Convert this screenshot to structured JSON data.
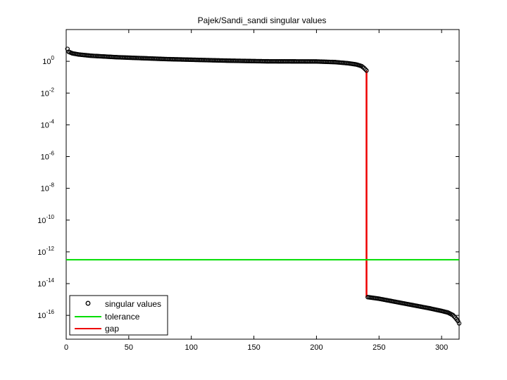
{
  "chart_data": {
    "type": "scatter",
    "title": "Pajek/Sandi_sandi singular values",
    "xlabel": "",
    "ylabel": "",
    "xlim": [
      0,
      314
    ],
    "ylim_log10": [
      -17.5,
      2
    ],
    "yscale": "log",
    "grid": false,
    "x_ticks": [
      0,
      50,
      100,
      150,
      200,
      250,
      300
    ],
    "y_ticks": [
      {
        "base": "10",
        "exp": "0",
        "log": 0
      },
      {
        "base": "10",
        "exp": "-2",
        "log": -2
      },
      {
        "base": "10",
        "exp": "-4",
        "log": -4
      },
      {
        "base": "10",
        "exp": "-6",
        "log": -6
      },
      {
        "base": "10",
        "exp": "-8",
        "log": -8
      },
      {
        "base": "10",
        "exp": "-10",
        "log": -10
      },
      {
        "base": "10",
        "exp": "-12",
        "log": -12
      },
      {
        "base": "10",
        "exp": "-14",
        "log": -14
      },
      {
        "base": "10",
        "exp": "-16",
        "log": -16
      }
    ],
    "series": [
      {
        "name": "singular values",
        "style": "markers",
        "color": "#000000",
        "segments": [
          {
            "x_start": 1,
            "x_end": 240,
            "log10_profile": [
              [
                1,
                0.78
              ],
              [
                2,
                0.6
              ],
              [
                5,
                0.5
              ],
              [
                10,
                0.43
              ],
              [
                20,
                0.35
              ],
              [
                40,
                0.26
              ],
              [
                60,
                0.2
              ],
              [
                80,
                0.14
              ],
              [
                100,
                0.1
              ],
              [
                130,
                0.04
              ],
              [
                160,
                0.0
              ],
              [
                200,
                -0.01
              ],
              [
                215,
                -0.05
              ],
              [
                225,
                -0.12
              ],
              [
                232,
                -0.2
              ],
              [
                236,
                -0.3
              ],
              [
                238,
                -0.42
              ],
              [
                240,
                -0.58
              ]
            ]
          },
          {
            "x_start": 241,
            "x_end": 314,
            "log10_profile": [
              [
                241,
                -14.85
              ],
              [
                250,
                -14.95
              ],
              [
                260,
                -15.1
              ],
              [
                270,
                -15.25
              ],
              [
                280,
                -15.4
              ],
              [
                290,
                -15.55
              ],
              [
                300,
                -15.72
              ],
              [
                305,
                -15.82
              ],
              [
                309,
                -15.98
              ],
              [
                311,
                -16.15
              ],
              [
                313,
                -16.35
              ],
              [
                314,
                -16.5
              ]
            ]
          }
        ]
      },
      {
        "name": "tolerance",
        "style": "line",
        "color": "#00dd00",
        "log10_value": -12.5
      },
      {
        "name": "gap",
        "style": "line",
        "color": "#ee0000",
        "x": 240,
        "log10_from": -0.58,
        "log10_to": -14.85
      }
    ],
    "legend": {
      "position": "bottom-left",
      "entries": [
        "singular values",
        "tolerance",
        "gap"
      ]
    }
  }
}
